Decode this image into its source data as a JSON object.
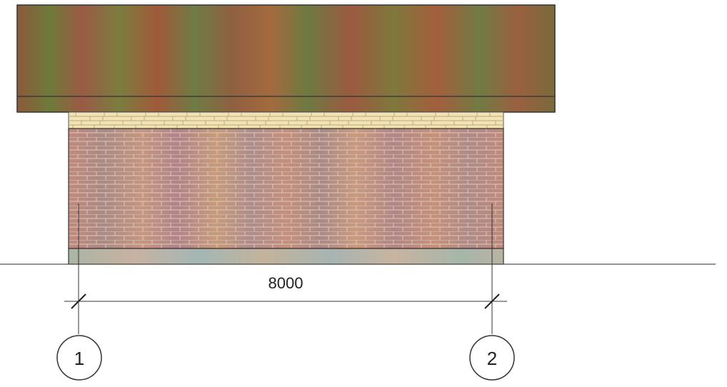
{
  "elevation": {
    "dimension": {
      "value_label": "8000"
    },
    "axes": [
      {
        "label": "1"
      },
      {
        "label": "2"
      }
    ],
    "materials": {
      "roof": "roof-panel",
      "frieze": "light-stone-band",
      "wall": "red-brick",
      "plinth": "plinth-band"
    },
    "colors": {
      "roof_base": "#8a6a3a",
      "roof_stripe_green": "#6f7a3c",
      "roof_stripe_red": "#9a5a3c",
      "frieze": "#f4e3b0",
      "brick_base": "#b88a7c",
      "mortar": "#d8b9ae",
      "plinth": "#b7b5a6",
      "line": "#333333"
    }
  }
}
